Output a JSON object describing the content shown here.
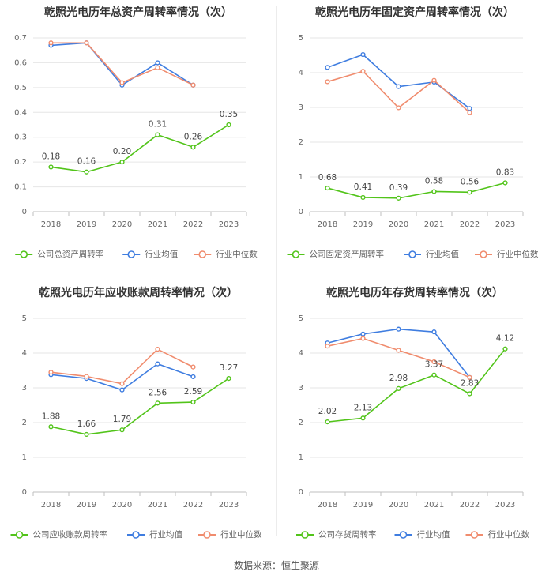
{
  "source_text": "数据来源：恒生聚源",
  "colors": {
    "company": "#52c41a",
    "industry_avg": "#3f7de0",
    "industry_median": "#f08c6e",
    "grid": "#e6e6e6",
    "axis": "#bfbfbf",
    "text": "#666666",
    "title": "#333333"
  },
  "chart_data": [
    {
      "type": "line",
      "title": "乾照光电历年总资产周转率情况（次）",
      "categories": [
        "2018",
        "2019",
        "2020",
        "2021",
        "2022",
        "2023"
      ],
      "y_ticks": [
        "0",
        "0.1",
        "0.2",
        "0.3",
        "0.4",
        "0.5",
        "0.6",
        "0.7"
      ],
      "ylim": [
        0,
        0.7
      ],
      "grid": true,
      "legend_position": "bottom",
      "series": [
        {
          "name": "公司总资产周转率",
          "color": "#52c41a",
          "values": [
            0.18,
            0.16,
            0.2,
            0.31,
            0.26,
            0.35
          ],
          "labels": [
            "0.18",
            "0.16",
            "0.20",
            "0.31",
            "0.26",
            "0.35"
          ]
        },
        {
          "name": "行业均值",
          "color": "#3f7de0",
          "values": [
            0.67,
            0.68,
            0.51,
            0.6,
            0.51,
            null
          ]
        },
        {
          "name": "行业中位数",
          "color": "#f08c6e",
          "values": [
            0.68,
            0.68,
            0.52,
            0.58,
            0.51,
            null
          ]
        }
      ]
    },
    {
      "type": "line",
      "title": "乾照光电历年固定资产周转率情况（次）",
      "categories": [
        "2018",
        "2019",
        "2020",
        "2021",
        "2022",
        "2023"
      ],
      "y_ticks": [
        "0",
        "1",
        "2",
        "3",
        "4",
        "5"
      ],
      "ylim": [
        0,
        5
      ],
      "grid": true,
      "legend_position": "bottom",
      "series": [
        {
          "name": "公司固定资产周转率",
          "color": "#52c41a",
          "values": [
            0.68,
            0.41,
            0.39,
            0.58,
            0.56,
            0.83
          ],
          "labels": [
            "0.68",
            "0.41",
            "0.39",
            "0.58",
            "0.56",
            "0.83"
          ]
        },
        {
          "name": "行业均值",
          "color": "#3f7de0",
          "values": [
            4.15,
            4.52,
            3.6,
            3.73,
            2.97,
            null
          ]
        },
        {
          "name": "行业中位数",
          "color": "#f08c6e",
          "values": [
            3.74,
            4.04,
            2.99,
            3.78,
            2.85,
            null
          ]
        }
      ]
    },
    {
      "type": "line",
      "title": "乾照光电历年应收账款周转率情况（次）",
      "categories": [
        "2018",
        "2019",
        "2020",
        "2021",
        "2022",
        "2023"
      ],
      "y_ticks": [
        "0",
        "1",
        "2",
        "3",
        "4",
        "5"
      ],
      "ylim": [
        0,
        5
      ],
      "grid": true,
      "legend_position": "bottom",
      "series": [
        {
          "name": "公司应收账款周转率",
          "color": "#52c41a",
          "values": [
            1.88,
            1.66,
            1.79,
            2.56,
            2.59,
            3.27
          ],
          "labels": [
            "1.88",
            "1.66",
            "1.79",
            "2.56",
            "2.59",
            "3.27"
          ]
        },
        {
          "name": "行业均值",
          "color": "#3f7de0",
          "values": [
            3.38,
            3.27,
            2.94,
            3.69,
            3.32,
            null
          ]
        },
        {
          "name": "行业中位数",
          "color": "#f08c6e",
          "values": [
            3.45,
            3.33,
            3.12,
            4.11,
            3.6,
            null
          ]
        }
      ]
    },
    {
      "type": "line",
      "title": "乾照光电历年存货周转率情况（次）",
      "categories": [
        "2018",
        "2019",
        "2020",
        "2021",
        "2022",
        "2023"
      ],
      "y_ticks": [
        "0",
        "1",
        "2",
        "3",
        "4",
        "5"
      ],
      "ylim": [
        0,
        5
      ],
      "grid": true,
      "legend_position": "bottom",
      "series": [
        {
          "name": "公司存货周转率",
          "color": "#52c41a",
          "values": [
            2.02,
            2.13,
            2.98,
            3.37,
            2.83,
            4.12
          ],
          "labels": [
            "2.02",
            "2.13",
            "2.98",
            "3.37",
            "2.83",
            "4.12"
          ]
        },
        {
          "name": "行业均值",
          "color": "#3f7de0",
          "values": [
            4.29,
            4.55,
            4.69,
            4.61,
            3.3,
            null
          ]
        },
        {
          "name": "行业中位数",
          "color": "#f08c6e",
          "values": [
            4.2,
            4.42,
            4.08,
            3.75,
            3.3,
            null
          ]
        }
      ]
    }
  ]
}
